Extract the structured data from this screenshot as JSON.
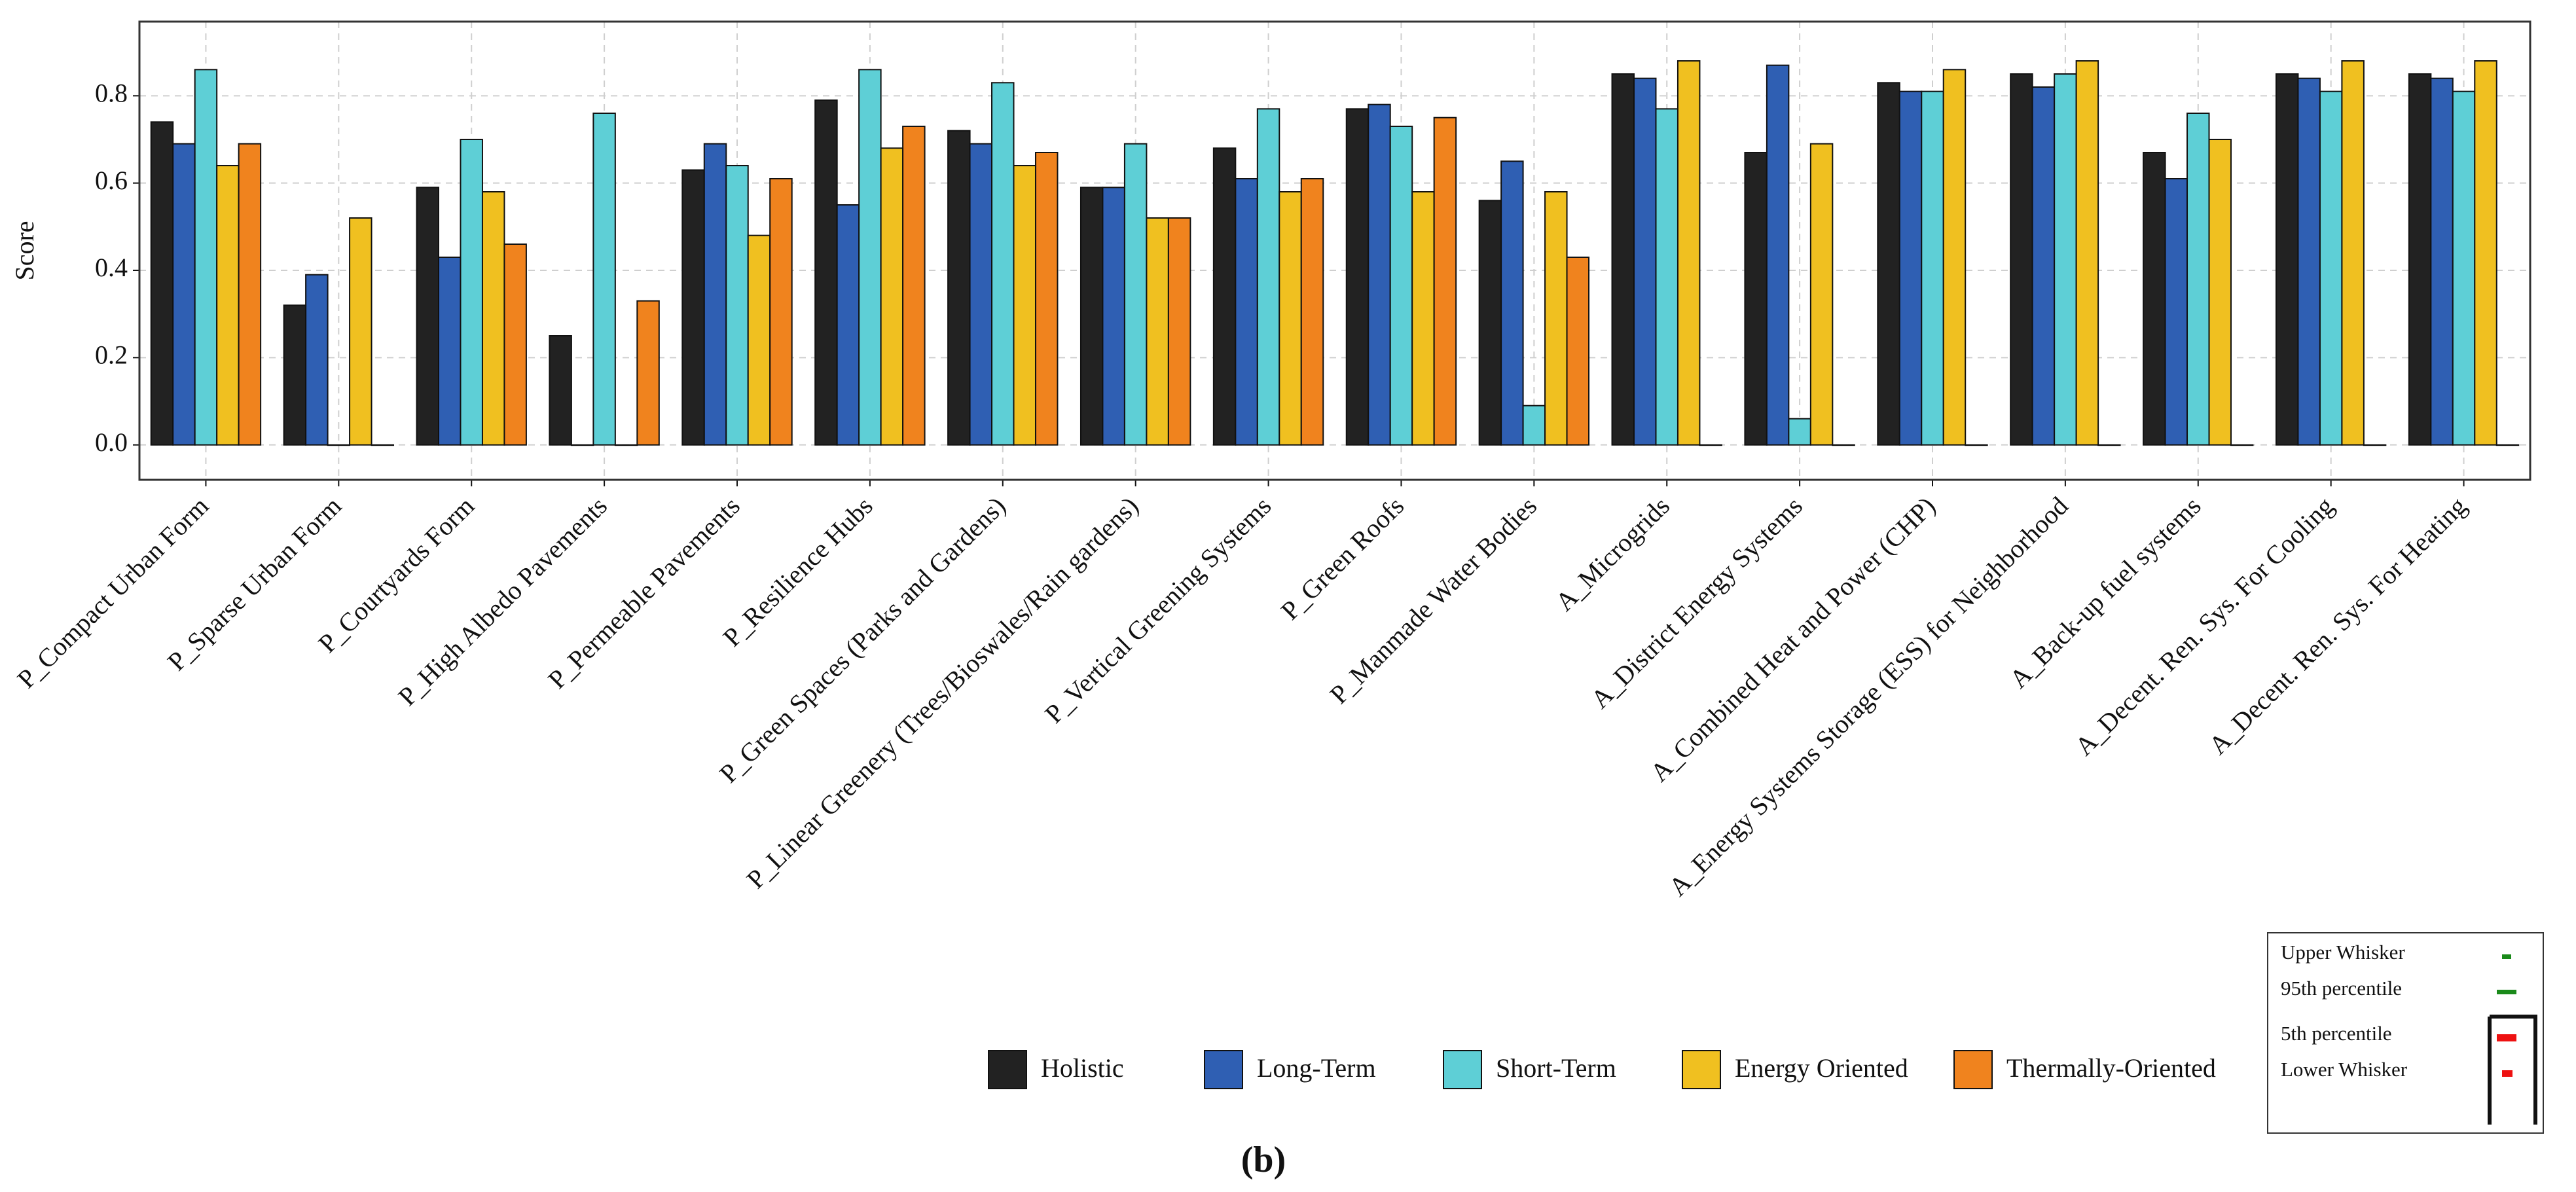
{
  "chart_data": {
    "type": "bar",
    "y_label": "Score",
    "caption": "(b)",
    "categories": [
      "P_Compact Urban Form",
      "P_Sparse Urban Form",
      "P_Courtyards Form",
      "P_High Albedo Pavements",
      "P_Permeable Pavements",
      "P_Resilience Hubs",
      "P_Green Spaces (Parks and Gardens)",
      "P_Linear Greenery (Trees/Bioswales/Rain gardens)",
      "P_Vertical Greening Systems",
      "P_Green Roofs",
      "P_Manmade Water Bodies",
      "A_Microgrids",
      "A_District Energy Systems",
      "A_Combined Heat and Power (CHP)",
      "A_Energy Systems Storage (ESS) for Neighborhood",
      "A_Back-up fuel systems",
      "A_Decent. Ren. Sys. For Cooling",
      "A_Decent. Ren. Sys. For Heating"
    ],
    "series": [
      {
        "name": "Holistic",
        "color": "#222222",
        "values": [
          0.74,
          0.32,
          0.59,
          0.25,
          0.63,
          0.79,
          0.72,
          0.59,
          0.68,
          0.77,
          0.56,
          0.85,
          0.67,
          0.83,
          0.85,
          0.67,
          0.85,
          0.85
        ]
      },
      {
        "name": "Long-Term",
        "color": "#2f5fb3",
        "values": [
          0.69,
          0.39,
          0.43,
          0.0,
          0.69,
          0.55,
          0.69,
          0.59,
          0.61,
          0.78,
          0.65,
          0.84,
          0.87,
          0.81,
          0.82,
          0.61,
          0.84,
          0.84
        ]
      },
      {
        "name": "Short-Term",
        "color": "#5ecfd6",
        "values": [
          0.86,
          0.0,
          0.7,
          0.76,
          0.64,
          0.86,
          0.83,
          0.69,
          0.77,
          0.73,
          0.09,
          0.77,
          0.06,
          0.81,
          0.85,
          0.76,
          0.81,
          0.81
        ]
      },
      {
        "name": "Energy Oriented",
        "color": "#f0c020",
        "values": [
          0.64,
          0.52,
          0.58,
          0.0,
          0.48,
          0.68,
          0.64,
          0.52,
          0.58,
          0.58,
          0.58,
          0.88,
          0.69,
          0.86,
          0.88,
          0.7,
          0.88,
          0.88
        ]
      },
      {
        "name": "Thermally-Oriented",
        "color": "#f0831e",
        "values": [
          0.69,
          0.0,
          0.46,
          0.33,
          0.61,
          0.73,
          0.67,
          0.52,
          0.61,
          0.75,
          0.43,
          0.0,
          0.0,
          0.0,
          0.0,
          0.0,
          0.0,
          0.0
        ]
      }
    ],
    "ylim": [
      -0.08,
      0.97
    ],
    "yticks": [
      {
        "value": 0,
        "label": "0.0"
      },
      0.2,
      0.4,
      0.6,
      0.8
    ],
    "grid": true,
    "whisker_legend": [
      "Upper Whisker",
      "95th percentile",
      "5th percentile",
      "Lower Whisker"
    ]
  }
}
